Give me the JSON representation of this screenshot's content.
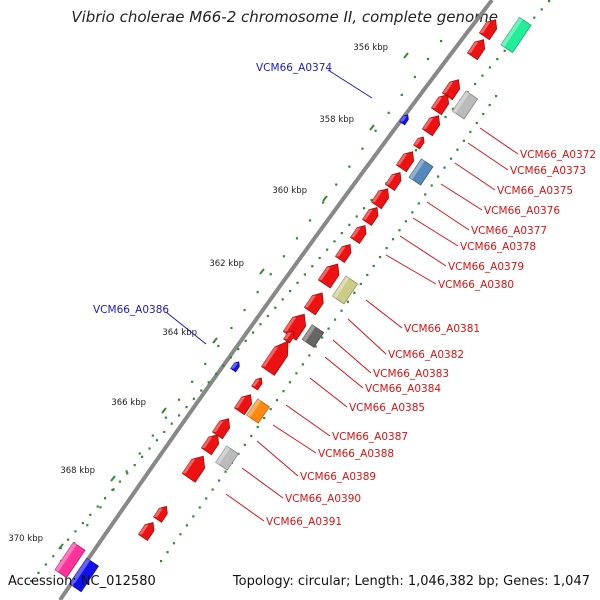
{
  "title": "Vibrio cholerae M66-2 chromosome II, complete genome",
  "footer": {
    "accession": "Accession: NC_012580",
    "summary": "Topology: circular; Length: 1,046,382 bp; Genes: 1,047"
  },
  "ticks": [
    "356 kbp",
    "358 kbp",
    "360 kbp",
    "362 kbp",
    "364 kbp",
    "366 kbp",
    "368 kbp",
    "370 kbp"
  ],
  "labels_left": [
    "VCM66_A0374",
    "VCM66_A0386"
  ],
  "labels_right": [
    "VCM66_A0372",
    "VCM66_A0373",
    "VCM66_A0375",
    "VCM66_A0376",
    "VCM66_A0377",
    "VCM66_A0378",
    "VCM66_A0379",
    "VCM66_A0380",
    "VCM66_A0381",
    "VCM66_A0382",
    "VCM66_A0383",
    "VCM66_A0384",
    "VCM66_A0385",
    "VCM66_A0387",
    "VCM66_A0388",
    "VCM66_A0389",
    "VCM66_A0390",
    "VCM66_A0391"
  ],
  "colors": {
    "cds": "#ee1111",
    "blue_label": "#1a1acc",
    "red_label": "#dd1111",
    "backbone": "#888888",
    "gc_dots": "#2e8b2e",
    "teal": "#22ee99",
    "grey": "#bbbbbb",
    "steel": "#5588bb",
    "khaki": "#cccc88",
    "dark": "#666666",
    "orange": "#ff8811",
    "magenta": "#ff3399",
    "blue": "#1111ee"
  }
}
